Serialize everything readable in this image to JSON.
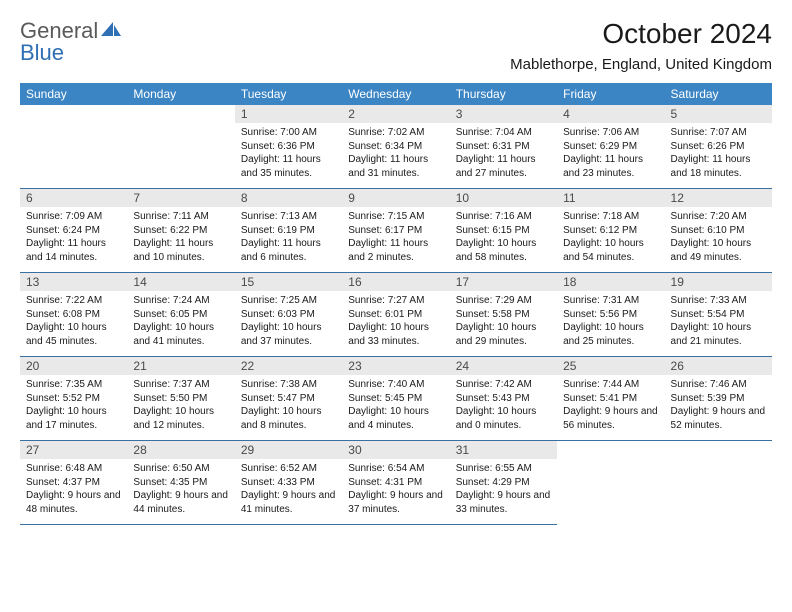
{
  "logo": {
    "part1": "General",
    "part2": "Blue"
  },
  "title": "October 2024",
  "location": "Mablethorpe, England, United Kingdom",
  "colors": {
    "header_bg": "#3b85c5",
    "header_text": "#ffffff",
    "daynum_bg": "#e9e9e9",
    "border": "#3b6f9f",
    "logo_gray": "#5a5a5a",
    "logo_blue": "#2f6fb3"
  },
  "dayNames": [
    "Sunday",
    "Monday",
    "Tuesday",
    "Wednesday",
    "Thursday",
    "Friday",
    "Saturday"
  ],
  "weeks": [
    [
      null,
      null,
      {
        "n": "1",
        "sr": "Sunrise: 7:00 AM",
        "ss": "Sunset: 6:36 PM",
        "dl": "Daylight: 11 hours and 35 minutes."
      },
      {
        "n": "2",
        "sr": "Sunrise: 7:02 AM",
        "ss": "Sunset: 6:34 PM",
        "dl": "Daylight: 11 hours and 31 minutes."
      },
      {
        "n": "3",
        "sr": "Sunrise: 7:04 AM",
        "ss": "Sunset: 6:31 PM",
        "dl": "Daylight: 11 hours and 27 minutes."
      },
      {
        "n": "4",
        "sr": "Sunrise: 7:06 AM",
        "ss": "Sunset: 6:29 PM",
        "dl": "Daylight: 11 hours and 23 minutes."
      },
      {
        "n": "5",
        "sr": "Sunrise: 7:07 AM",
        "ss": "Sunset: 6:26 PM",
        "dl": "Daylight: 11 hours and 18 minutes."
      }
    ],
    [
      {
        "n": "6",
        "sr": "Sunrise: 7:09 AM",
        "ss": "Sunset: 6:24 PM",
        "dl": "Daylight: 11 hours and 14 minutes."
      },
      {
        "n": "7",
        "sr": "Sunrise: 7:11 AM",
        "ss": "Sunset: 6:22 PM",
        "dl": "Daylight: 11 hours and 10 minutes."
      },
      {
        "n": "8",
        "sr": "Sunrise: 7:13 AM",
        "ss": "Sunset: 6:19 PM",
        "dl": "Daylight: 11 hours and 6 minutes."
      },
      {
        "n": "9",
        "sr": "Sunrise: 7:15 AM",
        "ss": "Sunset: 6:17 PM",
        "dl": "Daylight: 11 hours and 2 minutes."
      },
      {
        "n": "10",
        "sr": "Sunrise: 7:16 AM",
        "ss": "Sunset: 6:15 PM",
        "dl": "Daylight: 10 hours and 58 minutes."
      },
      {
        "n": "11",
        "sr": "Sunrise: 7:18 AM",
        "ss": "Sunset: 6:12 PM",
        "dl": "Daylight: 10 hours and 54 minutes."
      },
      {
        "n": "12",
        "sr": "Sunrise: 7:20 AM",
        "ss": "Sunset: 6:10 PM",
        "dl": "Daylight: 10 hours and 49 minutes."
      }
    ],
    [
      {
        "n": "13",
        "sr": "Sunrise: 7:22 AM",
        "ss": "Sunset: 6:08 PM",
        "dl": "Daylight: 10 hours and 45 minutes."
      },
      {
        "n": "14",
        "sr": "Sunrise: 7:24 AM",
        "ss": "Sunset: 6:05 PM",
        "dl": "Daylight: 10 hours and 41 minutes."
      },
      {
        "n": "15",
        "sr": "Sunrise: 7:25 AM",
        "ss": "Sunset: 6:03 PM",
        "dl": "Daylight: 10 hours and 37 minutes."
      },
      {
        "n": "16",
        "sr": "Sunrise: 7:27 AM",
        "ss": "Sunset: 6:01 PM",
        "dl": "Daylight: 10 hours and 33 minutes."
      },
      {
        "n": "17",
        "sr": "Sunrise: 7:29 AM",
        "ss": "Sunset: 5:58 PM",
        "dl": "Daylight: 10 hours and 29 minutes."
      },
      {
        "n": "18",
        "sr": "Sunrise: 7:31 AM",
        "ss": "Sunset: 5:56 PM",
        "dl": "Daylight: 10 hours and 25 minutes."
      },
      {
        "n": "19",
        "sr": "Sunrise: 7:33 AM",
        "ss": "Sunset: 5:54 PM",
        "dl": "Daylight: 10 hours and 21 minutes."
      }
    ],
    [
      {
        "n": "20",
        "sr": "Sunrise: 7:35 AM",
        "ss": "Sunset: 5:52 PM",
        "dl": "Daylight: 10 hours and 17 minutes."
      },
      {
        "n": "21",
        "sr": "Sunrise: 7:37 AM",
        "ss": "Sunset: 5:50 PM",
        "dl": "Daylight: 10 hours and 12 minutes."
      },
      {
        "n": "22",
        "sr": "Sunrise: 7:38 AM",
        "ss": "Sunset: 5:47 PM",
        "dl": "Daylight: 10 hours and 8 minutes."
      },
      {
        "n": "23",
        "sr": "Sunrise: 7:40 AM",
        "ss": "Sunset: 5:45 PM",
        "dl": "Daylight: 10 hours and 4 minutes."
      },
      {
        "n": "24",
        "sr": "Sunrise: 7:42 AM",
        "ss": "Sunset: 5:43 PM",
        "dl": "Daylight: 10 hours and 0 minutes."
      },
      {
        "n": "25",
        "sr": "Sunrise: 7:44 AM",
        "ss": "Sunset: 5:41 PM",
        "dl": "Daylight: 9 hours and 56 minutes."
      },
      {
        "n": "26",
        "sr": "Sunrise: 7:46 AM",
        "ss": "Sunset: 5:39 PM",
        "dl": "Daylight: 9 hours and 52 minutes."
      }
    ],
    [
      {
        "n": "27",
        "sr": "Sunrise: 6:48 AM",
        "ss": "Sunset: 4:37 PM",
        "dl": "Daylight: 9 hours and 48 minutes."
      },
      {
        "n": "28",
        "sr": "Sunrise: 6:50 AM",
        "ss": "Sunset: 4:35 PM",
        "dl": "Daylight: 9 hours and 44 minutes."
      },
      {
        "n": "29",
        "sr": "Sunrise: 6:52 AM",
        "ss": "Sunset: 4:33 PM",
        "dl": "Daylight: 9 hours and 41 minutes."
      },
      {
        "n": "30",
        "sr": "Sunrise: 6:54 AM",
        "ss": "Sunset: 4:31 PM",
        "dl": "Daylight: 9 hours and 37 minutes."
      },
      {
        "n": "31",
        "sr": "Sunrise: 6:55 AM",
        "ss": "Sunset: 4:29 PM",
        "dl": "Daylight: 9 hours and 33 minutes."
      },
      null,
      null
    ]
  ]
}
